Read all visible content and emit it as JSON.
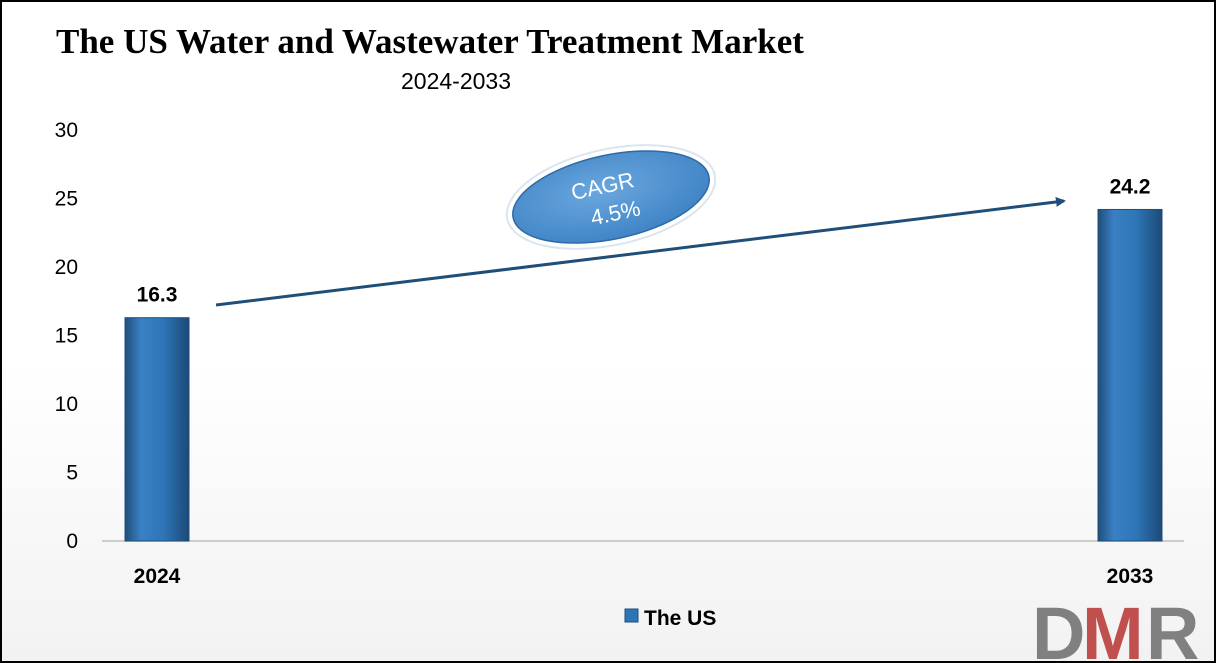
{
  "chart_data": {
    "type": "bar",
    "title": "The US Water and Wastewater Treatment Market",
    "subtitle": "2024-2033",
    "categories": [
      "2024",
      "2033"
    ],
    "series": [
      {
        "name": "The US",
        "values": [
          16.3,
          24.2
        ],
        "color": "#2e75b6"
      }
    ],
    "data_labels": [
      "16.3",
      "24.2"
    ],
    "ylim": [
      0,
      30
    ],
    "yticks": [
      0,
      5,
      10,
      15,
      20,
      25,
      30
    ],
    "grid": false,
    "legend": "bottom-center",
    "annotation": {
      "line1": "CAGR",
      "line2": "4.5%",
      "arrow": "from 2024 to 2033"
    }
  },
  "logo": {
    "letters": [
      "D",
      "M",
      "R"
    ],
    "colors": {
      "d": "#808080",
      "m": "#c0504d",
      "r": "#808080"
    }
  }
}
